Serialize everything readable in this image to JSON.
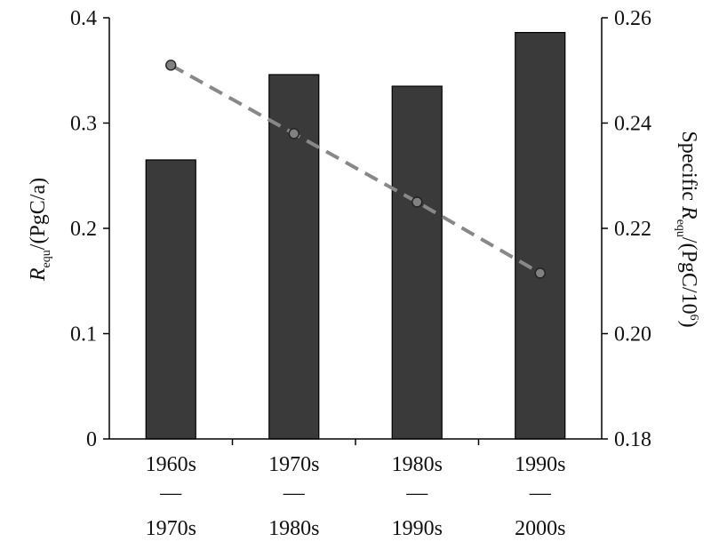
{
  "chart_data": {
    "type": "bar",
    "categories": [
      [
        "1960s",
        "—",
        "1970s"
      ],
      [
        "1970s",
        "—",
        "1980s"
      ],
      [
        "1980s",
        "—",
        "1990s"
      ],
      [
        "1990s",
        "—",
        "2000s"
      ]
    ],
    "series": [
      {
        "values": [
          0.265,
          0.346,
          0.335,
          0.386
        ],
        "axis": "left",
        "kind": "bar",
        "color": "#3a3a3a"
      },
      {
        "values": [
          0.251,
          0.238,
          0.225,
          0.2115
        ],
        "axis": "right",
        "kind": "line",
        "style": "dashed",
        "color": "#888888",
        "marker_color": "#808080"
      }
    ],
    "left_axis": {
      "label_main": "R",
      "label_sub": "equ",
      "label_rest": "/(PgC/a)",
      "ylim": [
        0,
        0.4
      ],
      "ticks": [
        0,
        0.1,
        0.2,
        0.3,
        0.4
      ],
      "tick_labels": [
        "0",
        "0.1",
        "0.2",
        "0.3",
        "0.4"
      ]
    },
    "right_axis": {
      "label_pre": "Specific ",
      "label_main": "R",
      "label_sub": "equ",
      "label_rest": "/(PgC/10",
      "label_sup": "6",
      "label_close": ")",
      "ylim": [
        0.18,
        0.26
      ],
      "ticks": [
        0.18,
        0.2,
        0.22,
        0.24,
        0.26
      ],
      "tick_labels": [
        "0.18",
        "0.20",
        "0.22",
        "0.24",
        "0.26"
      ]
    },
    "grid": false,
    "legend": "none"
  }
}
